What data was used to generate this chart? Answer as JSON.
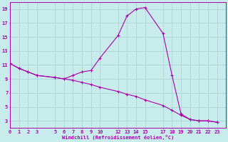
{
  "xlabel": "Windchill (Refroidissement éolien,°C)",
  "bg_color": "#c8ecec",
  "grid_color": "#b0d8d8",
  "line_color": "#aa00aa",
  "x_curve1": [
    0,
    1,
    2,
    3,
    5,
    6,
    7,
    8,
    9,
    10,
    12,
    13,
    14,
    15,
    17,
    18,
    19,
    20,
    21,
    22,
    23
  ],
  "y_curve1": [
    11.2,
    10.5,
    10.0,
    9.5,
    9.2,
    9.0,
    9.5,
    10.0,
    10.2,
    12.0,
    15.2,
    18.0,
    19.0,
    19.2,
    15.5,
    9.5,
    4.0,
    3.2,
    3.0,
    3.0,
    2.8
  ],
  "x_curve2": [
    0,
    1,
    2,
    3,
    5,
    6,
    7,
    8,
    9,
    10,
    12,
    13,
    14,
    15,
    17,
    18,
    19,
    20,
    21,
    22,
    23
  ],
  "y_curve2": [
    11.2,
    10.5,
    10.0,
    9.5,
    9.2,
    9.0,
    8.8,
    8.5,
    8.2,
    7.8,
    7.2,
    6.8,
    6.5,
    6.0,
    5.2,
    4.5,
    3.8,
    3.2,
    3.0,
    3.0,
    2.8
  ],
  "xlim": [
    0,
    24
  ],
  "ylim": [
    2,
    20
  ],
  "yticks": [
    3,
    5,
    7,
    9,
    11,
    13,
    15,
    17,
    19
  ],
  "xticks": [
    0,
    1,
    2,
    3,
    5,
    6,
    7,
    8,
    9,
    10,
    12,
    13,
    14,
    15,
    17,
    18,
    19,
    20,
    21,
    22,
    23
  ]
}
